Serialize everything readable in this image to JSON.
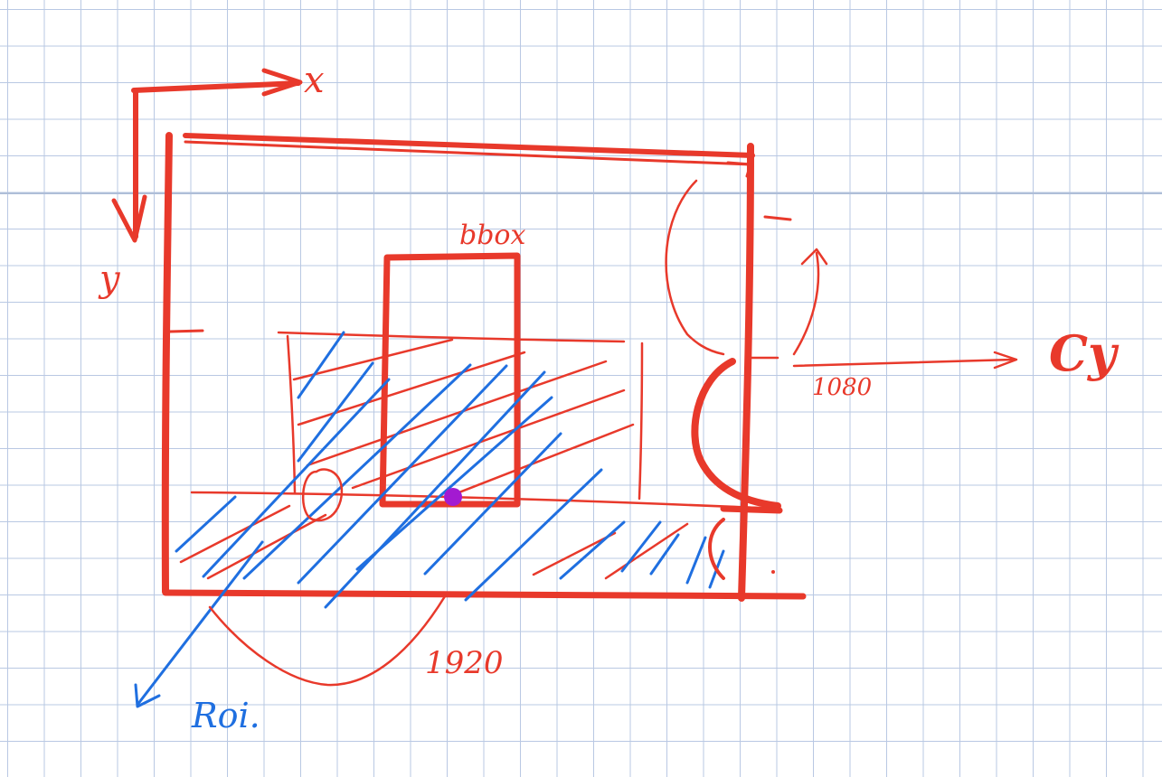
{
  "colors": {
    "ink_red": "#e8392b",
    "ink_blue": "#1f6fe0",
    "point_purple": "#a31ad1",
    "grid_line": "#b9c8e3"
  },
  "annotations": {
    "axis_x": "x",
    "axis_y": "y",
    "bbox_label": "bbox",
    "width_label": "1920",
    "height_label": "1080",
    "cy_label": "Cy",
    "roi_label": "Roi."
  }
}
